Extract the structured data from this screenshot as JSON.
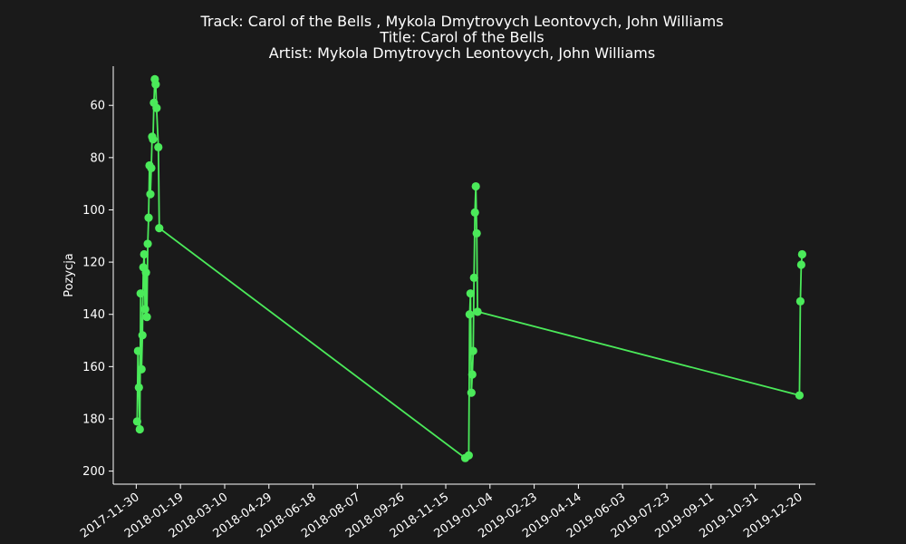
{
  "chart_data": {
    "type": "line",
    "title_lines": [
      "Track:  Carol of the Bells , Mykola Dmytrovych Leontovych, John Williams",
      "Title:  Carol of the Bells",
      "Artist:  Mykola Dmytrovych Leontovych, John Williams"
    ],
    "xlabel": "",
    "ylabel": "Pozycja",
    "y_inverted": true,
    "ylim": [
      205,
      45
    ],
    "xlim": [
      "2017-11-04",
      "2020-01-07"
    ],
    "grid": false,
    "line_color": "#4bea5a",
    "background_color": "#1a1a1a",
    "axis_color": "#ffffff",
    "x_ticks": [
      "2017-11-30",
      "2018-01-19",
      "2018-03-10",
      "2018-04-29",
      "2018-06-18",
      "2018-08-07",
      "2018-09-26",
      "2018-11-15",
      "2019-01-04",
      "2019-02-23",
      "2019-04-14",
      "2019-06-03",
      "2019-07-23",
      "2019-09-11",
      "2019-10-31",
      "2019-12-20"
    ],
    "y_ticks": [
      60,
      80,
      100,
      120,
      140,
      160,
      180,
      200
    ],
    "series": [
      {
        "name": "",
        "points": [
          {
            "x": "2017-12-01",
            "y": 181
          },
          {
            "x": "2017-12-02",
            "y": 154
          },
          {
            "x": "2017-12-03",
            "y": 168
          },
          {
            "x": "2017-12-04",
            "y": 184
          },
          {
            "x": "2017-12-05",
            "y": 132
          },
          {
            "x": "2017-12-06",
            "y": 161
          },
          {
            "x": "2017-12-07",
            "y": 148
          },
          {
            "x": "2017-12-08",
            "y": 122
          },
          {
            "x": "2017-12-09",
            "y": 117
          },
          {
            "x": "2017-12-10",
            "y": 138
          },
          {
            "x": "2017-12-11",
            "y": 124
          },
          {
            "x": "2017-12-12",
            "y": 141
          },
          {
            "x": "2017-12-13",
            "y": 113
          },
          {
            "x": "2017-12-14",
            "y": 103
          },
          {
            "x": "2017-12-15",
            "y": 83
          },
          {
            "x": "2017-12-16",
            "y": 94
          },
          {
            "x": "2017-12-17",
            "y": 84
          },
          {
            "x": "2017-12-18",
            "y": 72
          },
          {
            "x": "2017-12-19",
            "y": 73
          },
          {
            "x": "2017-12-20",
            "y": 59
          },
          {
            "x": "2017-12-21",
            "y": 50
          },
          {
            "x": "2017-12-22",
            "y": 52
          },
          {
            "x": "2017-12-23",
            "y": 61
          },
          {
            "x": "2017-12-25",
            "y": 76
          },
          {
            "x": "2017-12-26",
            "y": 107
          },
          {
            "x": "2018-12-07",
            "y": 195
          },
          {
            "x": "2018-12-11",
            "y": 194
          },
          {
            "x": "2018-12-12",
            "y": 140
          },
          {
            "x": "2018-12-13",
            "y": 132
          },
          {
            "x": "2018-12-14",
            "y": 170
          },
          {
            "x": "2018-12-15",
            "y": 163
          },
          {
            "x": "2018-12-16",
            "y": 154
          },
          {
            "x": "2018-12-17",
            "y": 126
          },
          {
            "x": "2018-12-18",
            "y": 101
          },
          {
            "x": "2018-12-19",
            "y": 91
          },
          {
            "x": "2018-12-20",
            "y": 109
          },
          {
            "x": "2018-12-21",
            "y": 139
          },
          {
            "x": "2019-12-20",
            "y": 171
          },
          {
            "x": "2019-12-21",
            "y": 135
          },
          {
            "x": "2019-12-22",
            "y": 121
          },
          {
            "x": "2019-12-23",
            "y": 117
          }
        ]
      }
    ]
  }
}
